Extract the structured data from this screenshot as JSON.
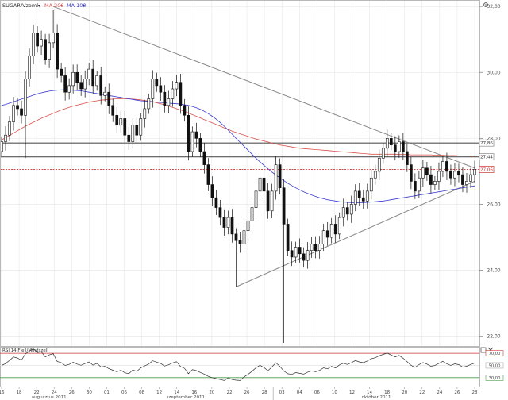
{
  "legend": {
    "symbol": "SUGAR/Vzoml",
    "ma200": "MA 200",
    "ma100": "MA 100",
    "arrow": "▾",
    "ma200_color": "#d9534f",
    "ma100_color": "#3a3ad0"
  },
  "rsi_legend": "RSI 14 Fjell/Mindszell",
  "colors": {
    "candle_up": "#ffffff",
    "candle_down": "#111111",
    "trendline": "#888888",
    "support_line": "#555555",
    "last_price_line": "#cc3333",
    "grid": "#e3e3e3"
  },
  "chart_data": {
    "type": "candlestick",
    "y_ticks": [
      "32,00",
      "30,00",
      "28,00",
      "26,00",
      "24,00",
      "22,00"
    ],
    "ylim": [
      21.8,
      32.1
    ],
    "x_ticks": [
      "16",
      "18",
      "22",
      "24",
      "26",
      "30",
      "01",
      "06",
      "08",
      "12",
      "14",
      "16",
      "20",
      "22",
      "26",
      "28",
      "03",
      "04",
      "06",
      "10",
      "12",
      "14",
      "18",
      "20",
      "22",
      "24",
      "26",
      "28"
    ],
    "x_groups": [
      "augusztus 2011",
      "szeptember 2011",
      "október 2011"
    ],
    "price_labels": [
      {
        "label": "27,86",
        "value": 27.86,
        "kind": "level"
      },
      {
        "label": "27,44",
        "value": 27.44,
        "kind": "level"
      },
      {
        "label": "27,06",
        "value": 27.06,
        "kind": "last"
      }
    ],
    "trendlines": [
      {
        "name": "descending",
        "from": [
          13,
          32.0
        ],
        "to": [
          119,
          27.1
        ]
      },
      {
        "name": "ascending",
        "from": [
          59,
          23.5
        ],
        "to": [
          119,
          26.7
        ]
      }
    ],
    "closes": [
      27.9,
      28.1,
      28.5,
      29.0,
      28.9,
      28.7,
      29.8,
      30.5,
      31.2,
      30.8,
      31.0,
      30.4,
      30.9,
      31.2,
      30.1,
      29.9,
      29.4,
      29.6,
      30.0,
      29.7,
      29.5,
      29.8,
      30.1,
      29.6,
      29.9,
      29.3,
      29.4,
      29.0,
      28.7,
      28.4,
      28.6,
      28.1,
      27.9,
      28.4,
      28.1,
      28.6,
      28.9,
      29.2,
      29.8,
      29.6,
      29.4,
      29.0,
      29.2,
      29.5,
      29.7,
      29.0,
      28.7,
      27.6,
      28.2,
      28.0,
      27.6,
      27.2,
      26.6,
      26.2,
      25.9,
      25.6,
      25.3,
      25.6,
      25.1,
      24.9,
      24.8,
      25.2,
      25.5,
      25.9,
      26.4,
      26.8,
      26.4,
      25.8,
      26.4,
      27.2,
      26.5,
      25.4,
      24.6,
      24.4,
      24.7,
      24.5,
      24.3,
      24.6,
      24.8,
      24.6,
      24.8,
      25.2,
      25.0,
      25.4,
      25.1,
      25.6,
      25.9,
      25.7,
      26.0,
      26.4,
      26.2,
      26.1,
      26.4,
      26.8,
      27.0,
      27.4,
      27.7,
      28.0,
      27.8,
      27.6,
      27.9,
      27.6,
      27.2,
      26.7,
      26.4,
      26.8,
      27.1,
      26.9,
      26.6,
      26.7,
      27.0,
      27.3,
      27.0,
      26.8,
      27.0,
      26.9,
      26.6,
      26.7,
      26.9,
      27.06
    ],
    "ma200": [
      27.95,
      28.02,
      28.09,
      28.16,
      28.23,
      28.3,
      28.37,
      28.43,
      28.49,
      28.55,
      28.61,
      28.66,
      28.71,
      28.76,
      28.81,
      28.86,
      28.9,
      28.94,
      28.98,
      29.01,
      29.04,
      29.07,
      29.1,
      29.12,
      29.14,
      29.16,
      29.17,
      29.18,
      29.19,
      29.2,
      29.2,
      29.2,
      29.2,
      29.19,
      29.18,
      29.17,
      29.15,
      29.13,
      29.11,
      29.08,
      29.05,
      29.02,
      28.98,
      28.94,
      28.9,
      28.86,
      28.82,
      28.77,
      28.72,
      28.67,
      28.62,
      28.57,
      28.52,
      28.47,
      28.42,
      28.37,
      28.32,
      28.27,
      28.22,
      28.18,
      28.14,
      28.1,
      28.06,
      28.02,
      27.98,
      27.95,
      27.92,
      27.89,
      27.86,
      27.83,
      27.8,
      27.78,
      27.76,
      27.74,
      27.72,
      27.7,
      27.69,
      27.68,
      27.67,
      27.66,
      27.65,
      27.64,
      27.63,
      27.62,
      27.61,
      27.6,
      27.59,
      27.58,
      27.57,
      27.56,
      27.55,
      27.54,
      27.53,
      27.52,
      27.52,
      27.52,
      27.52,
      27.52,
      27.52,
      27.52,
      27.51,
      27.51,
      27.51,
      27.5,
      27.5,
      27.5,
      27.5,
      27.5,
      27.5,
      27.49,
      27.49,
      27.49,
      27.48,
      27.48,
      27.48,
      27.47,
      27.47,
      27.47,
      27.46,
      27.46
    ],
    "ma100": [
      29.0,
      29.03,
      29.07,
      29.11,
      29.15,
      29.19,
      29.23,
      29.27,
      29.31,
      29.35,
      29.38,
      29.41,
      29.43,
      29.45,
      29.46,
      29.47,
      29.47,
      29.47,
      29.46,
      29.45,
      29.44,
      29.42,
      29.4,
      29.38,
      29.36,
      29.34,
      29.32,
      29.3,
      29.28,
      29.26,
      29.24,
      29.22,
      29.2,
      29.18,
      29.16,
      29.14,
      29.13,
      29.12,
      29.11,
      29.1,
      29.09,
      29.08,
      29.07,
      29.06,
      29.05,
      29.04,
      29.02,
      29.0,
      28.97,
      28.93,
      28.88,
      28.82,
      28.75,
      28.67,
      28.58,
      28.48,
      28.37,
      28.25,
      28.13,
      28.0,
      27.88,
      27.76,
      27.64,
      27.52,
      27.4,
      27.29,
      27.18,
      27.08,
      26.98,
      26.89,
      26.8,
      26.72,
      26.64,
      26.57,
      26.5,
      26.44,
      26.38,
      26.33,
      26.28,
      26.24,
      26.2,
      26.17,
      26.14,
      26.12,
      26.1,
      26.08,
      26.07,
      26.06,
      26.05,
      26.05,
      26.05,
      26.05,
      26.06,
      26.07,
      26.08,
      26.09,
      26.1,
      26.12,
      26.14,
      26.16,
      26.18,
      26.2,
      26.22,
      26.24,
      26.26,
      26.28,
      26.3,
      26.32,
      26.34,
      26.36,
      26.38,
      26.4,
      26.42,
      26.44,
      26.46,
      26.48,
      26.5,
      26.52,
      26.54,
      26.56
    ],
    "rsi": {
      "y_ticks": [
        "70,00",
        "50,00",
        "30,00"
      ],
      "ylim": [
        18,
        78
      ],
      "levels": [
        70,
        30
      ]
    }
  }
}
